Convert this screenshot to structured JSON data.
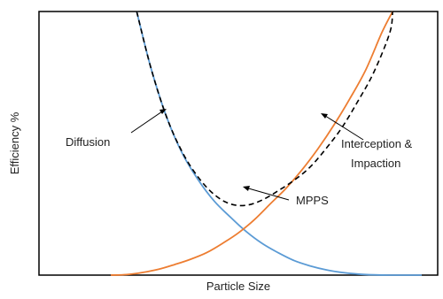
{
  "chart_data": {
    "type": "line",
    "title": "",
    "xlabel": "Particle Size",
    "ylabel": "Efficiency %",
    "xlim": [
      0,
      100
    ],
    "ylim": [
      0,
      100
    ],
    "grid": false,
    "series": [
      {
        "key": "diffusion",
        "style": "solid",
        "color": "#5b9bd5",
        "x": [
          24.5,
          28,
          32,
          36,
          40,
          44,
          48,
          52,
          56,
          60,
          64,
          68,
          72,
          76,
          80,
          84,
          88,
          92,
          96
        ],
        "y": [
          100,
          79,
          60,
          46,
          36,
          28,
          22,
          16.5,
          12,
          8.5,
          5.5,
          3.5,
          2,
          1,
          0.4,
          0.1,
          0,
          0,
          0
        ]
      },
      {
        "key": "interception_impaction",
        "style": "solid",
        "color": "#ed7d31",
        "x": [
          18,
          22,
          26,
          30,
          34,
          38,
          42,
          46,
          50,
          54,
          58,
          62,
          66,
          70,
          74,
          78,
          82,
          86,
          88.7
        ],
        "y": [
          0,
          0.2,
          1,
          2.2,
          4,
          6,
          8.5,
          12,
          16,
          21,
          27,
          33,
          40,
          48,
          57,
          67,
          78,
          92,
          100
        ]
      },
      {
        "key": "total",
        "style": "dashed",
        "color": "#000000",
        "x": [
          24.5,
          28,
          32,
          36,
          40,
          44,
          48,
          52,
          56,
          60,
          64,
          68,
          72,
          76,
          80,
          84,
          88,
          88.7
        ],
        "y": [
          100,
          79,
          60,
          46.5,
          37,
          30.5,
          27,
          26.5,
          28.5,
          32,
          36,
          41,
          48,
          56,
          66,
          77,
          92,
          100
        ]
      }
    ],
    "annotations": {
      "diffusion": "Diffusion",
      "interception": "Interception &",
      "impaction": "Impaction",
      "mpps": "MPPS"
    }
  }
}
